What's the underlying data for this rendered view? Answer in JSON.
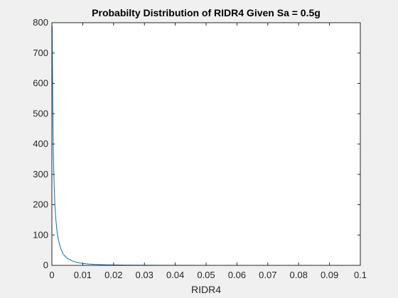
{
  "chart_data": {
    "type": "line",
    "title": "Probabilty Distribution of RIDR4 Given Sa = 0.5g",
    "xlabel": "RIDR4",
    "ylabel": "",
    "xlim": [
      0,
      0.1
    ],
    "ylim": [
      0,
      800
    ],
    "xticks": [
      0,
      0.01,
      0.02,
      0.03,
      0.04,
      0.05,
      0.06,
      0.07,
      0.08,
      0.09,
      0.1
    ],
    "xtick_labels": [
      "0",
      "0.01",
      "0.02",
      "0.03",
      "0.04",
      "0.05",
      "0.06",
      "0.07",
      "0.08",
      "0.09",
      "0.1"
    ],
    "yticks": [
      0,
      100,
      200,
      300,
      400,
      500,
      600,
      700,
      800
    ],
    "ytick_labels": [
      "0",
      "100",
      "200",
      "300",
      "400",
      "500",
      "600",
      "700",
      "800"
    ],
    "grid": false,
    "legend": "none",
    "series": [
      {
        "color": "#0072bd",
        "x": [
          0.0001,
          0.0002,
          0.0003,
          0.0005,
          0.0007,
          0.001,
          0.0013,
          0.0016,
          0.002,
          0.0025,
          0.003,
          0.0035,
          0.004,
          0.005,
          0.006,
          0.007,
          0.008,
          0.009,
          0.01,
          0.012,
          0.014,
          0.016,
          0.018,
          0.02,
          0.025,
          0.03,
          0.035,
          0.04,
          0.05,
          0.06,
          0.07,
          0.08,
          0.09,
          0.1
        ],
        "y": [
          790,
          640,
          520,
          365,
          275,
          195,
          150,
          118,
          90,
          68,
          52,
          41,
          33,
          23,
          17,
          13,
          10,
          8,
          6.5,
          4.5,
          3.2,
          2.4,
          1.8,
          1.4,
          0.8,
          0.5,
          0.35,
          0.25,
          0.15,
          0.1,
          0.07,
          0.05,
          0.04,
          0.03
        ]
      }
    ]
  }
}
